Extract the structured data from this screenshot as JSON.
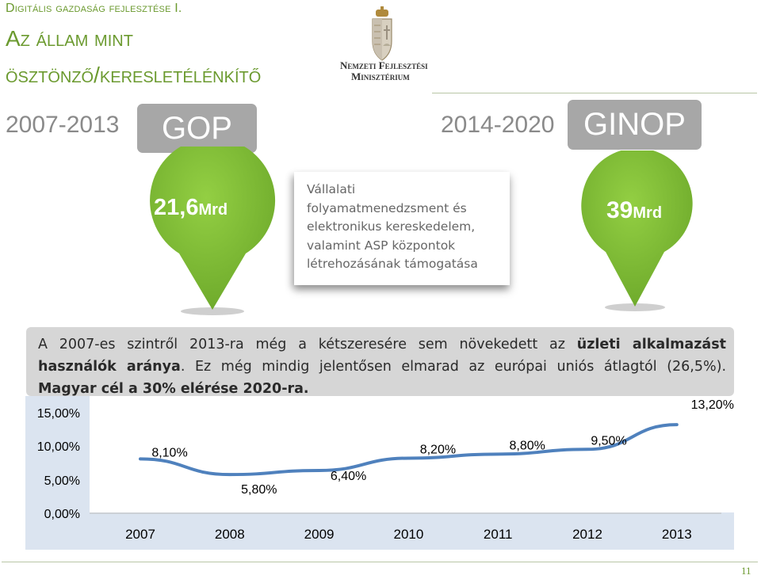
{
  "header": {
    "line1": "Digitális gazdaság fejlesztése I.",
    "line2": "Az állam mint",
    "line3": "ösztönző/keresletélénkítő"
  },
  "logo": {
    "line1": "Nemzeti Fejlesztési",
    "line2": "Minisztérium"
  },
  "left": {
    "period": "2007-2013",
    "program": "GOP",
    "amount": "21,6",
    "unit": "Mrd"
  },
  "right": {
    "period": "2014-2020",
    "program": "GINOP",
    "amount": "39",
    "unit": "Mrd"
  },
  "callout": {
    "lines": [
      "Vállalati",
      "folyamatmenedzsment és",
      "elektronikus kereskedelem,",
      "valamint ASP központok",
      "létrehozásának támogatása"
    ]
  },
  "info": {
    "part1": "A 2007-es szintről 2013-ra még a kétszeresére sem növekedett az ",
    "part2": "üzleti alkalmazást használók aránya",
    "part3": ". Ez még mindig jelentősen elmarad az európai uniós átlagtól (26,5%). ",
    "part4": "Magyar cél a 30% elérése 2020-ra."
  },
  "colors": {
    "accent_green": "#6b9a2f",
    "pin_green": "#7dbb2d",
    "line_blue": "#4f81bd",
    "chart_bg": "#dbe4f0"
  },
  "chart_data": {
    "type": "line",
    "categories": [
      "2007",
      "2008",
      "2009",
      "2010",
      "2011",
      "2012",
      "2013"
    ],
    "values": [
      8.1,
      5.8,
      6.4,
      8.2,
      8.8,
      9.5,
      13.2
    ],
    "data_labels": [
      "8,10%",
      "5,80%",
      "6,40%",
      "8,20%",
      "8,80%",
      "9,50%",
      "13,20%"
    ],
    "y_ticks": [
      "0,00%",
      "5,00%",
      "10,00%",
      "15,00%"
    ],
    "ylim": [
      0,
      15
    ]
  },
  "page_number": "11"
}
